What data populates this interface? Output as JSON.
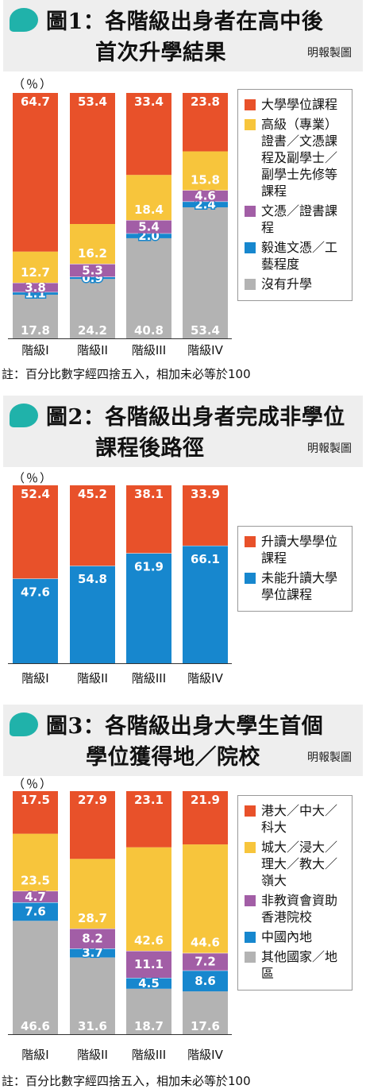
{
  "credit": "明報製圖",
  "note": "註：百分比數字經四捨五入，相加未必等於100",
  "unit": "（％）",
  "colors": {
    "red": "#e8512a",
    "yellow": "#f7c53c",
    "purple": "#a25ea6",
    "blue": "#1787ce",
    "gray": "#b3b3b3",
    "teal": "#20b2aa"
  },
  "chart_data": [
    {
      "type": "bar",
      "title": "圖1：各階級出身者在高中後首次升學結果",
      "ylabel": "（％）",
      "categories": [
        "階級I",
        "階級II",
        "階級III",
        "階級IV"
      ],
      "stacked": true,
      "ylim": [
        0,
        100
      ],
      "series": [
        {
          "name": "沒有升學",
          "values": [
            17.8,
            24.2,
            40.8,
            53.4
          ],
          "color": "gray"
        },
        {
          "name": "毅進文憑／工藝程度",
          "values": [
            1.1,
            0.9,
            2.0,
            2.4
          ],
          "color": "blue"
        },
        {
          "name": "文憑／證書課程",
          "values": [
            3.8,
            5.3,
            5.4,
            4.6
          ],
          "color": "purple"
        },
        {
          "name": "高級（專業）證書／文憑課程及副學士／副學士先修等課程",
          "values": [
            12.7,
            16.2,
            18.4,
            15.8
          ],
          "color": "yellow"
        },
        {
          "name": "大學學位課程",
          "values": [
            64.7,
            53.4,
            33.4,
            23.8
          ],
          "color": "red"
        }
      ],
      "legend_order": [
        4,
        3,
        2,
        1,
        0
      ],
      "legend_position": "right"
    },
    {
      "type": "bar",
      "title": "圖2：各階級出身者完成非學位課程後路徑",
      "ylabel": "（％）",
      "categories": [
        "階級I",
        "階級II",
        "階級III",
        "階級IV"
      ],
      "stacked": true,
      "ylim": [
        0,
        100
      ],
      "series": [
        {
          "name": "未能升讀大學學位課程",
          "values": [
            47.6,
            54.8,
            61.9,
            66.1
          ],
          "color": "blue"
        },
        {
          "name": "升讀大學學位課程",
          "values": [
            52.4,
            45.2,
            38.1,
            33.9
          ],
          "color": "red"
        }
      ],
      "legend_order": [
        1,
        0
      ],
      "legend_position": "right"
    },
    {
      "type": "bar",
      "title": "圖3：各階級出身大學生首個學位獲得地／院校",
      "ylabel": "（％）",
      "categories": [
        "階級I",
        "階級II",
        "階級III",
        "階級IV"
      ],
      "stacked": true,
      "ylim": [
        0,
        100
      ],
      "series": [
        {
          "name": "其他國家／地區",
          "values": [
            46.6,
            31.6,
            18.7,
            17.6
          ],
          "color": "gray"
        },
        {
          "name": "中國內地",
          "values": [
            7.6,
            3.7,
            4.5,
            8.6
          ],
          "color": "blue"
        },
        {
          "name": "非教資會資助香港院校",
          "values": [
            4.7,
            8.2,
            11.1,
            7.2
          ],
          "color": "purple"
        },
        {
          "name": "城大／浸大／理大／教大／嶺大",
          "values": [
            23.5,
            28.7,
            42.6,
            44.6
          ],
          "color": "yellow"
        },
        {
          "name": "港大／中大／科大",
          "values": [
            17.5,
            27.9,
            23.1,
            21.9
          ],
          "color": "red"
        }
      ],
      "legend_order": [
        4,
        3,
        2,
        1,
        0
      ],
      "legend_position": "right"
    }
  ],
  "titles": [
    {
      "line1": "圖1：各階級出身者在高中後",
      "line2": "首次升學結果"
    },
    {
      "line1": "圖2：各階級出身者完成非學位",
      "line2": "課程後路徑"
    },
    {
      "line1": "圖3：各階級出身大學生首個",
      "line2": "學位獲得地／院校"
    }
  ]
}
